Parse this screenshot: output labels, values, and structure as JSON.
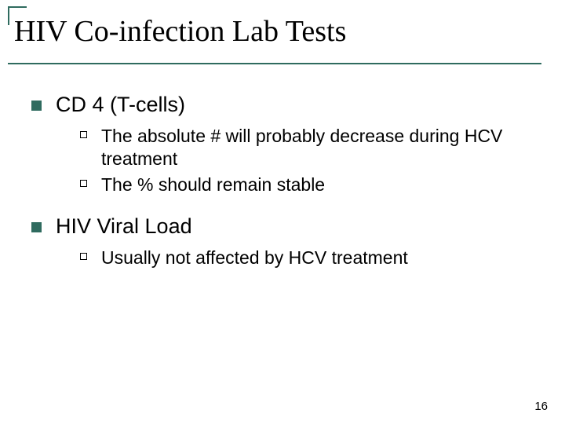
{
  "slide": {
    "title": "HIV Co-infection Lab Tests",
    "page_number": "16",
    "accent_color": "#2f6b5f",
    "underline_color": "#2f6b5f",
    "bullet_color_lvl1": "#2f6b5f",
    "title_fontsize": 38,
    "lvl1_fontsize": 27,
    "lvl2_fontsize": 23,
    "background_color": "#ffffff",
    "text_color": "#000000"
  },
  "items": [
    {
      "label": "CD 4 (T-cells)",
      "sub": [
        "The absolute # will probably decrease during HCV treatment",
        "The % should remain stable"
      ]
    },
    {
      "label": "HIV Viral Load",
      "sub": [
        "Usually not affected by HCV treatment"
      ]
    }
  ]
}
